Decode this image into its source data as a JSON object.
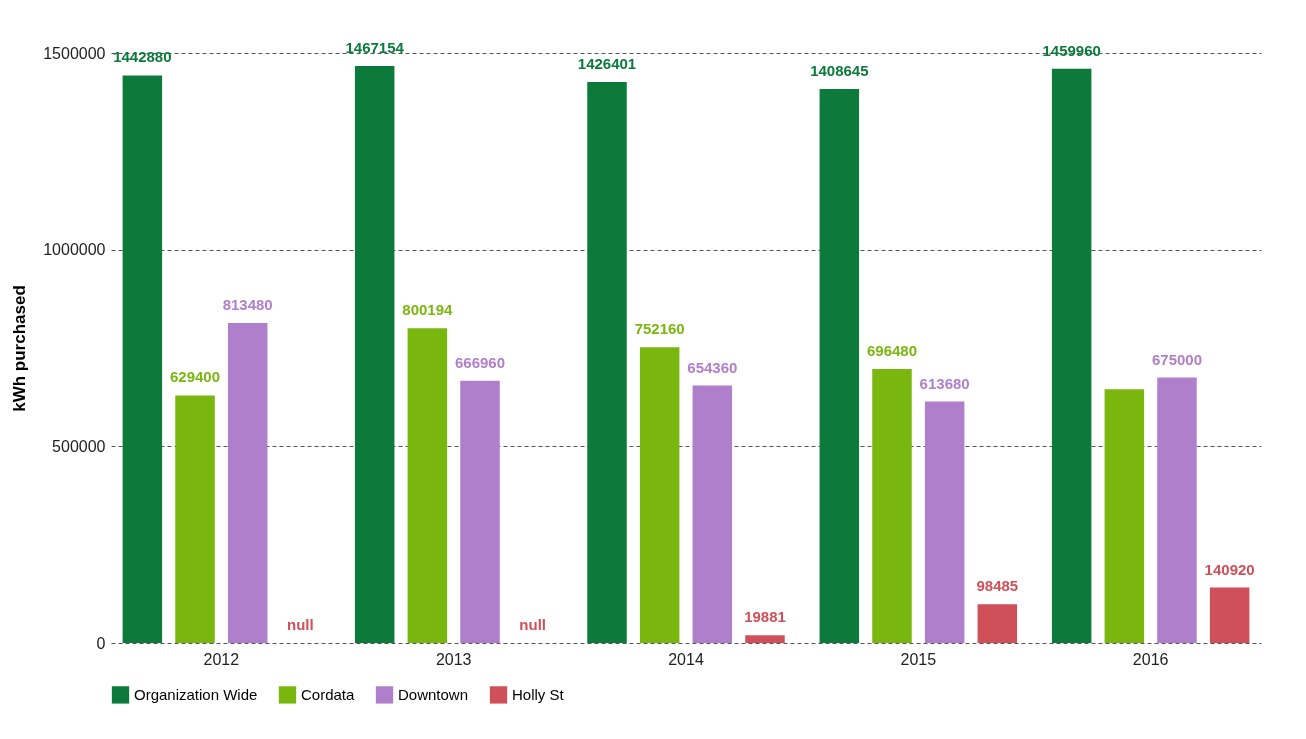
{
  "chart_data": {
    "type": "bar",
    "ylabel": "kWh purchased",
    "categories": [
      "2012",
      "2013",
      "2014",
      "2015",
      "2016"
    ],
    "series": [
      {
        "name": "Organization Wide",
        "color": "#0b7a3b",
        "values": [
          1442880,
          1467154,
          1426401,
          1408645,
          1459960
        ],
        "value_labels": [
          "1442880",
          "1467154",
          "1426401",
          "1408645",
          "1459960"
        ]
      },
      {
        "name": "Cordata",
        "color": "#79b70f",
        "values": [
          629400,
          800194,
          752160,
          696480,
          645000
        ],
        "value_labels": [
          "629400",
          "800194",
          "752160",
          "696480",
          null
        ]
      },
      {
        "name": "Downtown",
        "color": "#b07fcc",
        "values": [
          813480,
          666960,
          654360,
          613680,
          675000
        ],
        "value_labels": [
          "813480",
          "666960",
          "654360",
          "613680",
          "675000"
        ]
      },
      {
        "name": "Holly St",
        "color": "#d05059",
        "values": [
          null,
          null,
          19881,
          98485,
          140920
        ],
        "value_labels": [
          "null",
          "null",
          "19881",
          "98485",
          "140920"
        ]
      }
    ],
    "ylim": [
      0,
      1500000
    ],
    "yticks": [
      0,
      500000,
      1000000,
      1500000
    ],
    "grid": "y",
    "legend": "bottom"
  }
}
